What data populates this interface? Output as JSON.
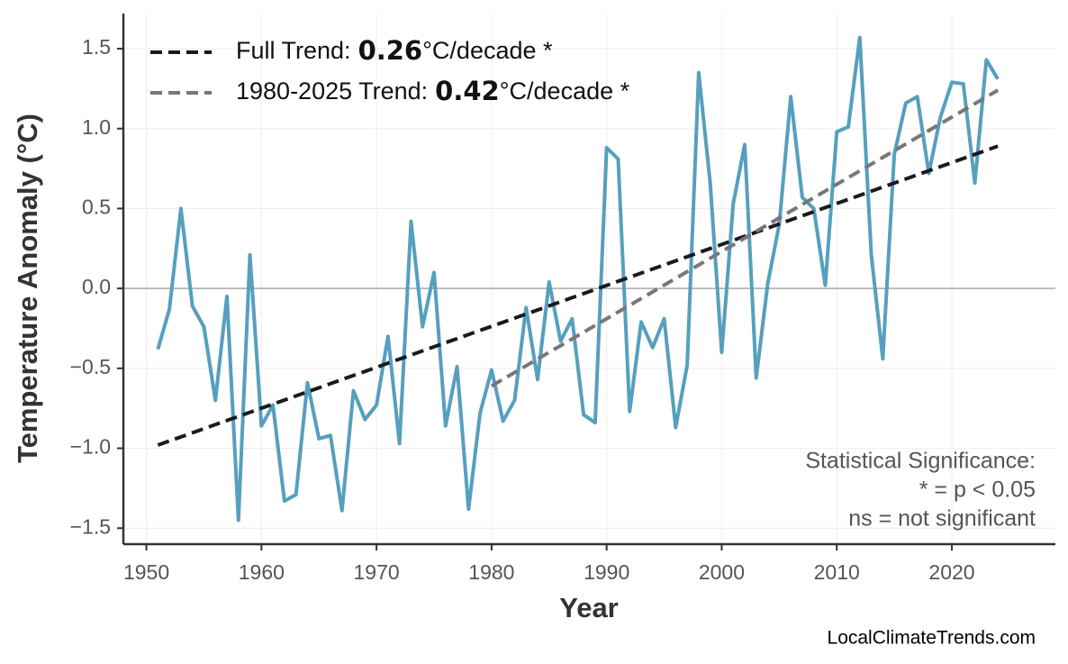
{
  "chart_data": {
    "type": "line",
    "x_label": "Year",
    "y_label": "Temperature Anomaly (°C)",
    "x": [
      1951,
      1952,
      1953,
      1954,
      1955,
      1956,
      1957,
      1958,
      1959,
      1960,
      1961,
      1962,
      1963,
      1964,
      1965,
      1966,
      1967,
      1968,
      1969,
      1970,
      1971,
      1972,
      1973,
      1974,
      1975,
      1976,
      1977,
      1978,
      1979,
      1980,
      1981,
      1982,
      1983,
      1984,
      1985,
      1986,
      1987,
      1988,
      1989,
      1990,
      1991,
      1992,
      1993,
      1994,
      1995,
      1996,
      1997,
      1998,
      1999,
      2000,
      2001,
      2002,
      2003,
      2004,
      2005,
      2006,
      2007,
      2008,
      2009,
      2010,
      2011,
      2012,
      2013,
      2014,
      2015,
      2016,
      2017,
      2018,
      2019,
      2020,
      2021,
      2022,
      2023,
      2024
    ],
    "series": [
      {
        "color": "#569fbf",
        "values": [
          -0.38,
          -0.13,
          0.5,
          -0.11,
          -0.24,
          -0.7,
          -0.05,
          -1.45,
          0.21,
          -0.86,
          -0.73,
          -1.33,
          -1.29,
          -0.59,
          -0.94,
          -0.92,
          -1.39,
          -0.64,
          -0.82,
          -0.73,
          -0.3,
          -0.97,
          0.42,
          -0.24,
          0.1,
          -0.86,
          -0.49,
          -1.38,
          -0.78,
          -0.51,
          -0.83,
          -0.7,
          -0.12,
          -0.57,
          0.04,
          -0.33,
          -0.19,
          -0.79,
          -0.84,
          0.88,
          0.81,
          -0.77,
          -0.21,
          -0.37,
          -0.19,
          -0.87,
          -0.48,
          1.35,
          0.66,
          -0.4,
          0.53,
          0.9,
          -0.56,
          0.03,
          0.4,
          1.2,
          0.57,
          0.5,
          0.02,
          0.98,
          1.01,
          1.57,
          0.21,
          -0.44,
          0.84,
          1.16,
          1.2,
          0.72,
          1.07,
          1.29,
          1.28,
          0.66,
          1.43,
          1.31
        ]
      }
    ],
    "trends": [
      {
        "label_parts": [
          "Full Trend:",
          "0.26",
          "°C/decade *"
        ],
        "color": "#1a1a1a",
        "x": [
          1951,
          2024
        ],
        "values": [
          -0.98,
          0.89
        ]
      },
      {
        "label_parts": [
          "1980-2025 Trend:",
          "0.42",
          "°C/decade *"
        ],
        "color": "#777777",
        "x": [
          1980,
          2024
        ],
        "values": [
          -0.61,
          1.24
        ]
      }
    ],
    "annotation": [
      "Statistical Significance:",
      "* = p < 0.05",
      "ns = not significant"
    ],
    "watermark": "LocalClimateTrends.com",
    "xlim": [
      1948,
      2029
    ],
    "xticks": [
      1950,
      1960,
      1970,
      1980,
      1990,
      2000,
      2010,
      2020
    ],
    "ylim": [
      -1.6,
      1.72
    ],
    "yticks": [
      {
        "value": -1.5,
        "label": "−1.5"
      },
      {
        "value": -1.0,
        "label": "−1.0"
      },
      {
        "value": -0.5,
        "label": "−0.5"
      },
      {
        "value": 0,
        "label": "0.0"
      },
      0.5,
      {
        "value": 1.0,
        "label": "1.0"
      },
      1.5
    ],
    "grid": true,
    "legend": "upper left"
  }
}
